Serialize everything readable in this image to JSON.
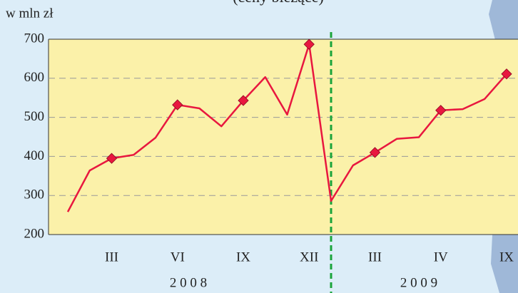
{
  "chart_data": {
    "type": "line",
    "subtitle": "(ceny bieżące)",
    "y_axis_label": "w mln zł",
    "categories": [
      null,
      null,
      "III",
      null,
      null,
      "VI",
      null,
      null,
      "IX",
      null,
      null,
      "XII",
      null,
      null,
      "III",
      null,
      null,
      "IV",
      null,
      null,
      "IX"
    ],
    "year_labels": [
      "2 0 0 8",
      "2 0 0 9"
    ],
    "series": [
      {
        "color": "#e8173f",
        "values": [
          258,
          364,
          395,
          404,
          448,
          532,
          523,
          477,
          543,
          603,
          507,
          687,
          286,
          377,
          410,
          445,
          449,
          518,
          521,
          547,
          611
        ]
      }
    ],
    "ylim": [
      200,
      700
    ],
    "yticks": [
      200,
      300,
      400,
      500,
      600,
      700
    ],
    "grid": true
  }
}
